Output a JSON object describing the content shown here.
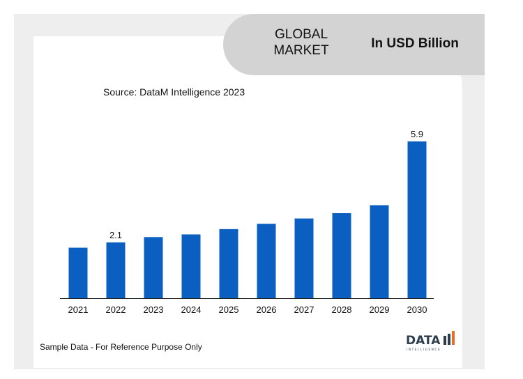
{
  "header": {
    "title_line1": "GLOBAL",
    "title_line2": "MARKET",
    "unit": "In USD Billion"
  },
  "source": "Source: DataM Intelligence  2023",
  "footer": {
    "note": "Sample Data - For Reference Purpose Only"
  },
  "logo": {
    "wordmark": "DATA",
    "tagline": "INTELLIGENCE"
  },
  "colors": {
    "bar": "#0a5fc0",
    "header_pill": "#d3d3d3",
    "panel": "#eeeeee",
    "axis": "#222222",
    "logo_dark": "#2f3e4e",
    "logo_accent": "#e4702a"
  },
  "chart_data": {
    "type": "bar",
    "categories": [
      "2021",
      "2022",
      "2023",
      "2024",
      "2025",
      "2026",
      "2027",
      "2028",
      "2029",
      "2030"
    ],
    "values": [
      1.9,
      2.1,
      2.3,
      2.4,
      2.6,
      2.8,
      3.0,
      3.2,
      3.5,
      5.9
    ],
    "data_labels": {
      "2022": "2.1",
      "2030": "5.9"
    },
    "ylim": [
      0,
      5.9
    ],
    "xlabel": "",
    "ylabel": "",
    "grid": false,
    "legend": "none"
  }
}
